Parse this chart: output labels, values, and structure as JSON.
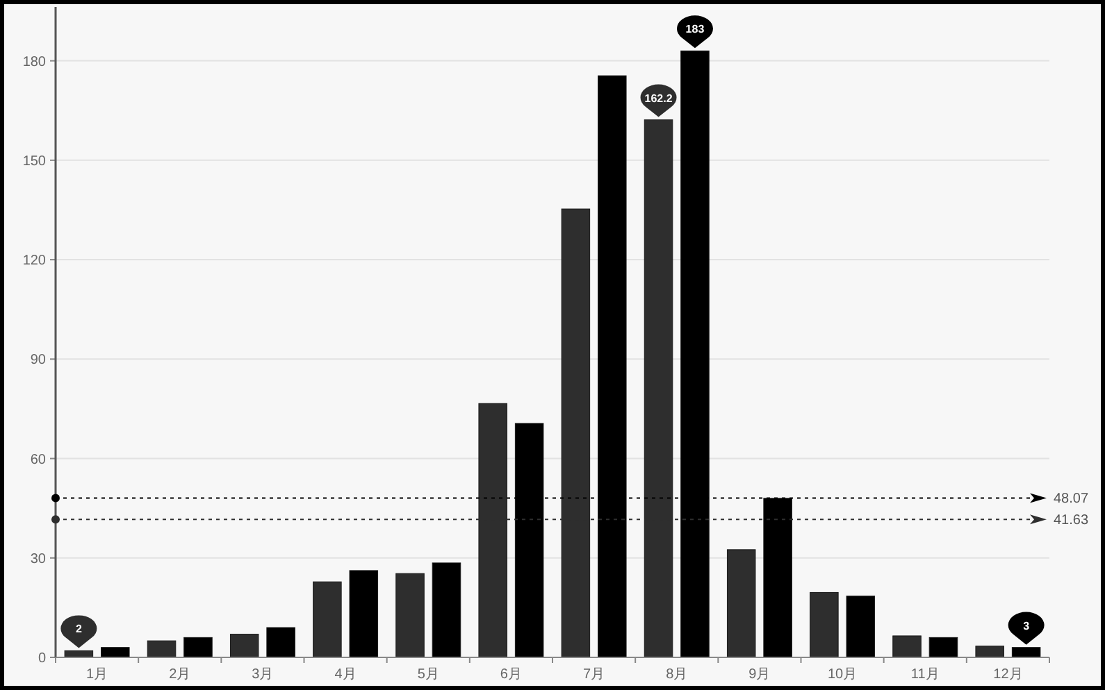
{
  "chart_data": {
    "type": "bar",
    "categories": [
      "1月",
      "2月",
      "3月",
      "4月",
      "5月",
      "6月",
      "7月",
      "8月",
      "9月",
      "10月",
      "11月",
      "12月"
    ],
    "series": [
      {
        "color": "#2e2e2e",
        "values": [
          2,
          5,
          7,
          22.8,
          25.3,
          76.6,
          135.3,
          162.2,
          32.5,
          19.6,
          6.5,
          3.4
        ],
        "value_labels": [
          "2",
          null,
          null,
          null,
          null,
          null,
          null,
          "162.2",
          null,
          null,
          null,
          null
        ]
      },
      {
        "color": "#000000",
        "values": [
          3,
          6,
          9,
          26.2,
          28.5,
          70.6,
          175.5,
          183,
          48,
          18.5,
          6,
          3
        ],
        "value_labels": [
          null,
          null,
          null,
          null,
          null,
          null,
          null,
          "183",
          null,
          null,
          null,
          "3"
        ]
      }
    ],
    "ylim": [
      0,
      195
    ],
    "yticks": [
      0,
      30,
      60,
      90,
      120,
      150,
      180
    ],
    "grid": "y",
    "ref_lines": [
      {
        "axis": "y",
        "value": 48.07,
        "label": "48.07",
        "color": "#000000",
        "line_style": "dotted"
      },
      {
        "axis": "y",
        "value": 41.63,
        "label": "41.63",
        "color": "#2e2e2e",
        "line_style": "dotted"
      }
    ]
  }
}
